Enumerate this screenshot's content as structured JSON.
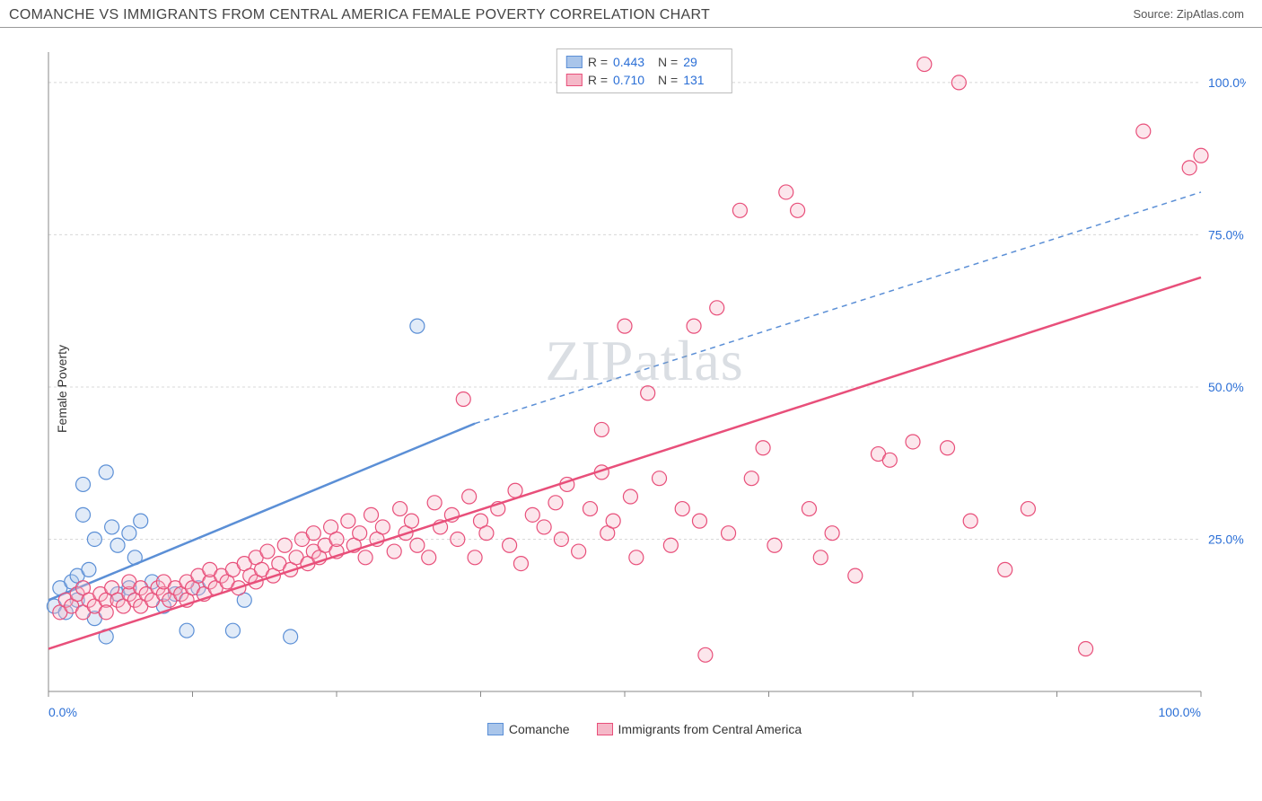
{
  "header": {
    "title": "COMANCHE VS IMMIGRANTS FROM CENTRAL AMERICA FEMALE POVERTY CORRELATION CHART",
    "source": "Source: ZipAtlas.com"
  },
  "watermark": {
    "part1": "ZIP",
    "part2": "atlas"
  },
  "chart": {
    "type": "scatter",
    "background_color": "#ffffff",
    "grid_color": "#d8d8d8",
    "axis_color": "#888888",
    "xlim": [
      0,
      100
    ],
    "ylim": [
      0,
      105
    ],
    "xticks": [
      0,
      12.5,
      25,
      37.5,
      50,
      62.5,
      75,
      87.5,
      100
    ],
    "xtick_labels": [
      "0.0%",
      "",
      "",
      "",
      "",
      "",
      "",
      "",
      "100.0%"
    ],
    "yticks": [
      25,
      50,
      75,
      100
    ],
    "ytick_labels": [
      "25.0%",
      "50.0%",
      "75.0%",
      "100.0%"
    ],
    "tick_label_color": "#2b6fd6",
    "tick_fontsize": 14,
    "y_axis_label": "Female Poverty",
    "label_fontsize": 14,
    "marker_radius": 8,
    "marker_stroke_width": 1.2,
    "marker_fill_opacity": 0.35,
    "series": [
      {
        "name": "Comanche",
        "color": "#5b8fd6",
        "fill": "#a9c5ea",
        "R": "0.443",
        "N": "29",
        "trend": {
          "x1": 0,
          "y1": 15,
          "x2": 37,
          "y2": 44,
          "dash_to_x": 100,
          "dash_to_y": 82,
          "width": 2.5
        },
        "points": [
          [
            0.5,
            14
          ],
          [
            1,
            17
          ],
          [
            1.5,
            13
          ],
          [
            2,
            18
          ],
          [
            2.5,
            19
          ],
          [
            2.5,
            15
          ],
          [
            3,
            29
          ],
          [
            3,
            34
          ],
          [
            3.5,
            20
          ],
          [
            4,
            25
          ],
          [
            4,
            12
          ],
          [
            5,
            9
          ],
          [
            5,
            36
          ],
          [
            5.5,
            27
          ],
          [
            6,
            24
          ],
          [
            6,
            16
          ],
          [
            7,
            17
          ],
          [
            7,
            26
          ],
          [
            7.5,
            22
          ],
          [
            8,
            28
          ],
          [
            9,
            18
          ],
          [
            10,
            14
          ],
          [
            11,
            16
          ],
          [
            12,
            10
          ],
          [
            13,
            17
          ],
          [
            16,
            10
          ],
          [
            17,
            15
          ],
          [
            21,
            9
          ],
          [
            32,
            60
          ]
        ]
      },
      {
        "name": "Immigrants from Central America",
        "color": "#e84f7a",
        "fill": "#f5b8c8",
        "R": "0.710",
        "N": "131",
        "trend": {
          "x1": 0,
          "y1": 7,
          "x2": 100,
          "y2": 68,
          "width": 2.5
        },
        "points": [
          [
            1,
            13
          ],
          [
            1.5,
            15
          ],
          [
            2,
            14
          ],
          [
            2.5,
            16
          ],
          [
            3,
            13
          ],
          [
            3,
            17
          ],
          [
            3.5,
            15
          ],
          [
            4,
            14
          ],
          [
            4.5,
            16
          ],
          [
            5,
            15
          ],
          [
            5,
            13
          ],
          [
            5.5,
            17
          ],
          [
            6,
            15
          ],
          [
            6.5,
            14
          ],
          [
            7,
            16
          ],
          [
            7,
            18
          ],
          [
            7.5,
            15
          ],
          [
            8,
            17
          ],
          [
            8,
            14
          ],
          [
            8.5,
            16
          ],
          [
            9,
            15
          ],
          [
            9.5,
            17
          ],
          [
            10,
            16
          ],
          [
            10,
            18
          ],
          [
            10.5,
            15
          ],
          [
            11,
            17
          ],
          [
            11.5,
            16
          ],
          [
            12,
            18
          ],
          [
            12,
            15
          ],
          [
            12.5,
            17
          ],
          [
            13,
            19
          ],
          [
            13.5,
            16
          ],
          [
            14,
            18
          ],
          [
            14,
            20
          ],
          [
            14.5,
            17
          ],
          [
            15,
            19
          ],
          [
            15.5,
            18
          ],
          [
            16,
            20
          ],
          [
            16.5,
            17
          ],
          [
            17,
            21
          ],
          [
            17.5,
            19
          ],
          [
            18,
            22
          ],
          [
            18,
            18
          ],
          [
            18.5,
            20
          ],
          [
            19,
            23
          ],
          [
            19.5,
            19
          ],
          [
            20,
            21
          ],
          [
            20.5,
            24
          ],
          [
            21,
            20
          ],
          [
            21.5,
            22
          ],
          [
            22,
            25
          ],
          [
            22.5,
            21
          ],
          [
            23,
            23
          ],
          [
            23,
            26
          ],
          [
            23.5,
            22
          ],
          [
            24,
            24
          ],
          [
            24.5,
            27
          ],
          [
            25,
            23
          ],
          [
            25,
            25
          ],
          [
            26,
            28
          ],
          [
            26.5,
            24
          ],
          [
            27,
            26
          ],
          [
            27.5,
            22
          ],
          [
            28,
            29
          ],
          [
            28.5,
            25
          ],
          [
            29,
            27
          ],
          [
            30,
            23
          ],
          [
            30.5,
            30
          ],
          [
            31,
            26
          ],
          [
            31.5,
            28
          ],
          [
            32,
            24
          ],
          [
            33,
            22
          ],
          [
            33.5,
            31
          ],
          [
            34,
            27
          ],
          [
            35,
            29
          ],
          [
            35.5,
            25
          ],
          [
            36,
            48
          ],
          [
            36.5,
            32
          ],
          [
            37,
            22
          ],
          [
            37.5,
            28
          ],
          [
            38,
            26
          ],
          [
            39,
            30
          ],
          [
            40,
            24
          ],
          [
            40.5,
            33
          ],
          [
            41,
            21
          ],
          [
            42,
            29
          ],
          [
            43,
            27
          ],
          [
            44,
            31
          ],
          [
            44.5,
            25
          ],
          [
            45,
            34
          ],
          [
            46,
            23
          ],
          [
            47,
            30
          ],
          [
            48,
            43
          ],
          [
            48.5,
            26
          ],
          [
            49,
            28
          ],
          [
            50,
            60
          ],
          [
            50.5,
            32
          ],
          [
            51,
            22
          ],
          [
            52,
            49
          ],
          [
            53,
            35
          ],
          [
            54,
            24
          ],
          [
            55,
            30
          ],
          [
            56,
            60
          ],
          [
            56.5,
            28
          ],
          [
            57,
            6
          ],
          [
            58,
            63
          ],
          [
            59,
            26
          ],
          [
            60,
            79
          ],
          [
            61,
            35
          ],
          [
            62,
            40
          ],
          [
            63,
            24
          ],
          [
            64,
            82
          ],
          [
            65,
            79
          ],
          [
            66,
            30
          ],
          [
            67,
            22
          ],
          [
            68,
            26
          ],
          [
            70,
            19
          ],
          [
            72,
            39
          ],
          [
            73,
            38
          ],
          [
            75,
            41
          ],
          [
            76,
            103
          ],
          [
            78,
            40
          ],
          [
            79,
            100
          ],
          [
            80,
            28
          ],
          [
            83,
            20
          ],
          [
            85,
            30
          ],
          [
            90,
            7
          ],
          [
            95,
            92
          ],
          [
            99,
            86
          ],
          [
            100,
            88
          ],
          [
            48,
            36
          ]
        ]
      }
    ]
  }
}
